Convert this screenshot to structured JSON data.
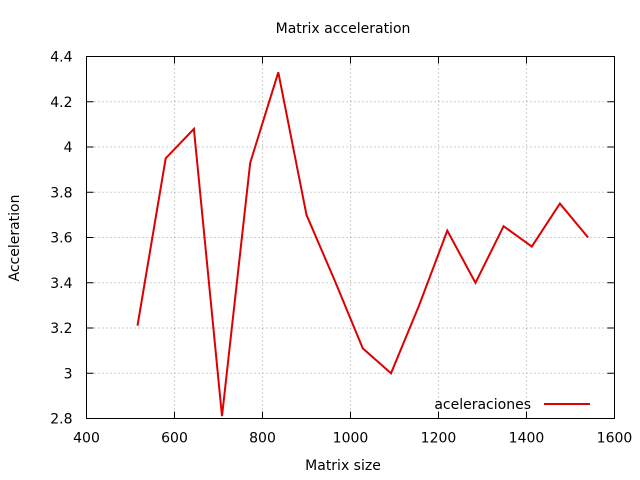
{
  "chart_data": {
    "type": "line",
    "title": "Matrix acceleration",
    "xlabel": "Matrix size",
    "ylabel": "Acceleration",
    "xlim": [
      400,
      1600
    ],
    "ylim": [
      2.8,
      4.4
    ],
    "xticks": [
      400,
      600,
      800,
      1000,
      1200,
      1400,
      1600
    ],
    "xtick_labels": [
      "400",
      "600",
      "800",
      "1000",
      "1200",
      "1400",
      "1600"
    ],
    "yticks": [
      2.8,
      3.0,
      3.2,
      3.4,
      3.6,
      3.8,
      4.0,
      4.2,
      4.4
    ],
    "ytick_labels": [
      "2.8",
      "3",
      "3.2",
      "3.4",
      "3.6",
      "3.8",
      "4",
      "4.2",
      "4.4"
    ],
    "grid": true,
    "legend_position": "bottom-right",
    "series": [
      {
        "name": "aceleraciones",
        "color": "#dd0000",
        "x": [
          516,
          580,
          644,
          708,
          772,
          836,
          900,
          964,
          1028,
          1092,
          1156,
          1220,
          1284,
          1348,
          1412,
          1476,
          1540
        ],
        "values": [
          3.21,
          3.95,
          4.08,
          2.81,
          3.93,
          4.33,
          3.7,
          3.41,
          3.11,
          3.0,
          3.3,
          3.63,
          3.4,
          3.65,
          3.56,
          3.75,
          3.6
        ]
      }
    ]
  }
}
